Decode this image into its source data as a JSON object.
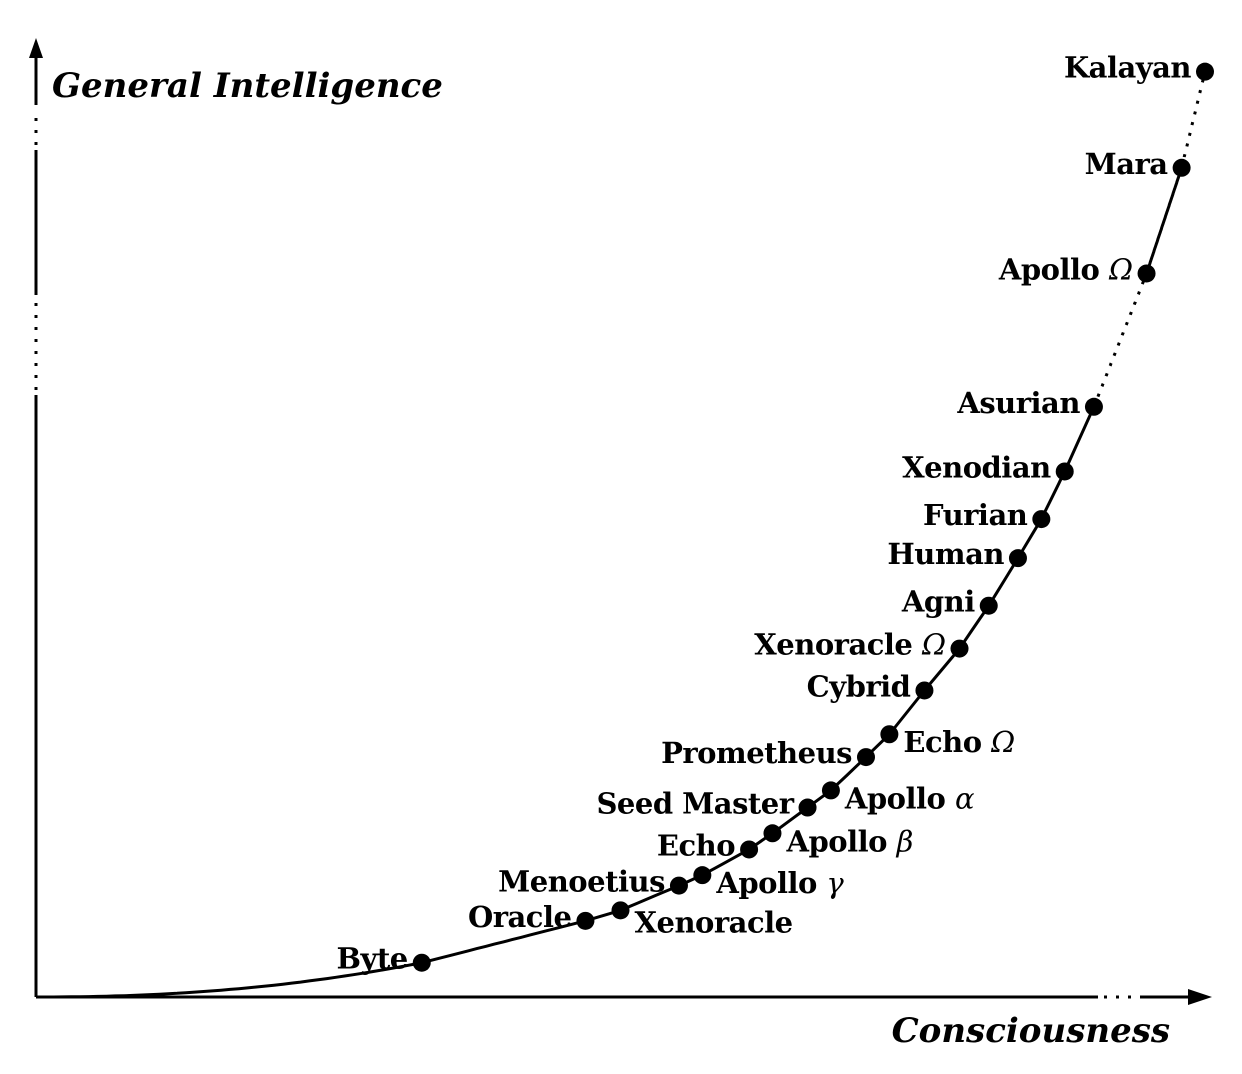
{
  "chart_data": {
    "type": "line",
    "xlabel": "Consciousness",
    "ylabel": "General Intelligence",
    "grid": false,
    "legend": "none",
    "points": [
      {
        "label": "Byte",
        "greek": "",
        "x": 0.33,
        "y": 0.036,
        "label_side": "left"
      },
      {
        "label": "Oracle",
        "greek": "",
        "x": 0.47,
        "y": 0.08,
        "label_side": "left"
      },
      {
        "label": "Xenoracle",
        "greek": "",
        "x": 0.5,
        "y": 0.091,
        "label_side": "right-below"
      },
      {
        "label": "Menoetius",
        "greek": "",
        "x": 0.55,
        "y": 0.117,
        "label_side": "left"
      },
      {
        "label": "Apollo ",
        "greek": "γ",
        "x": 0.57,
        "y": 0.128,
        "label_side": "right"
      },
      {
        "label": "Echo",
        "greek": "",
        "x": 0.61,
        "y": 0.155,
        "label_side": "left"
      },
      {
        "label": "Apollo ",
        "greek": "β",
        "x": 0.63,
        "y": 0.172,
        "label_side": "right"
      },
      {
        "label": "Seed Master",
        "greek": "",
        "x": 0.66,
        "y": 0.199,
        "label_side": "left"
      },
      {
        "label": "Apollo ",
        "greek": "α",
        "x": 0.68,
        "y": 0.217,
        "label_side": "right"
      },
      {
        "label": "Prometheus",
        "greek": "",
        "x": 0.71,
        "y": 0.252,
        "label_side": "left"
      },
      {
        "label": "Echo ",
        "greek": "Ω",
        "x": 0.73,
        "y": 0.276,
        "label_side": "right"
      },
      {
        "label": "Cybrid",
        "greek": "",
        "x": 0.76,
        "y": 0.322,
        "label_side": "left"
      },
      {
        "label": "Xenoracle ",
        "greek": "Ω",
        "x": 0.79,
        "y": 0.366,
        "label_side": "left"
      },
      {
        "label": "Agni",
        "greek": "",
        "x": 0.815,
        "y": 0.411,
        "label_side": "left"
      },
      {
        "label": "Human",
        "greek": "",
        "x": 0.84,
        "y": 0.461,
        "label_side": "left"
      },
      {
        "label": "Furian",
        "greek": "",
        "x": 0.86,
        "y": 0.502,
        "label_side": "left"
      },
      {
        "label": "Xenodian",
        "greek": "",
        "x": 0.88,
        "y": 0.552,
        "label_side": "left"
      },
      {
        "label": "Asurian",
        "greek": "",
        "x": 0.905,
        "y": 0.62,
        "label_side": "left"
      },
      {
        "label": "Apollo ",
        "greek": "Ω",
        "x": 0.95,
        "y": 0.76,
        "label_side": "left"
      },
      {
        "label": "Mara",
        "greek": "",
        "x": 0.98,
        "y": 0.871,
        "label_side": "left"
      },
      {
        "label": "Kalayan",
        "greek": "",
        "x": 1.0,
        "y": 0.972,
        "label_side": "left"
      }
    ],
    "segments": [
      {
        "from": 0.0,
        "to": 0.905,
        "style": "solid"
      },
      {
        "from": 0.905,
        "to": 0.95,
        "style": "dotted"
      },
      {
        "from": 0.95,
        "to": 0.98,
        "style": "solid"
      },
      {
        "from": 0.98,
        "to": 1.0,
        "style": "dotted"
      }
    ]
  }
}
